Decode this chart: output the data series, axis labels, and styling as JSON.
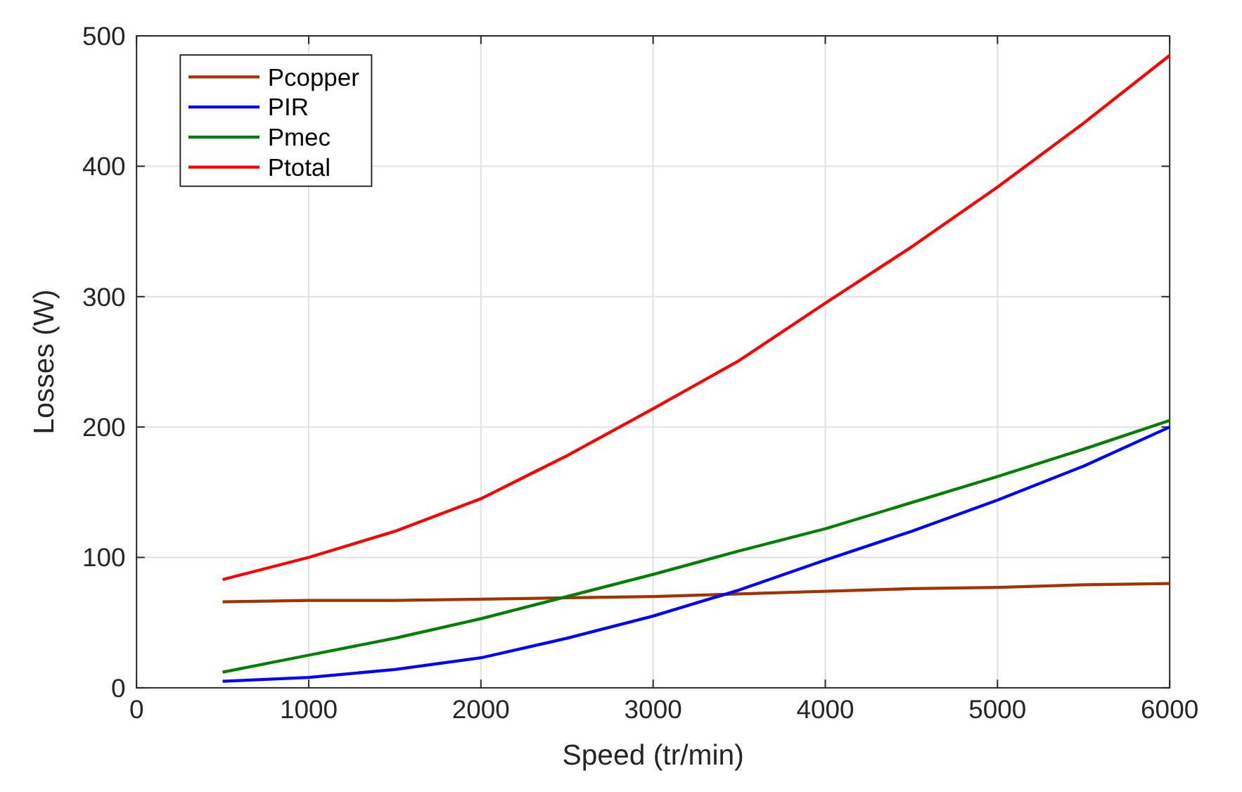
{
  "chart_data": {
    "type": "line",
    "xlabel": "Speed (tr/min)",
    "ylabel": "Losses (W)",
    "x": [
      500,
      1000,
      1500,
      2000,
      2500,
      3000,
      3500,
      4000,
      4500,
      5000,
      5500,
      6000
    ],
    "xlim": [
      0,
      6000
    ],
    "xticks": [
      0,
      1000,
      2000,
      3000,
      4000,
      5000,
      6000
    ],
    "ylim": [
      0,
      500
    ],
    "yticks": [
      0,
      100,
      200,
      300,
      400,
      500
    ],
    "grid": true,
    "legend": "top left",
    "series": [
      {
        "name": "Pcopper",
        "color": "#a33300",
        "values": [
          66,
          67,
          67,
          68,
          69,
          70,
          72,
          74,
          76,
          77,
          79,
          80
        ]
      },
      {
        "name": "PIR",
        "color": "#0000ff",
        "values": [
          5,
          8,
          14,
          23,
          38,
          55,
          75,
          98,
          120,
          144,
          170,
          200
        ]
      },
      {
        "name": "Pmec",
        "color": "#008000",
        "values": [
          12,
          25,
          38,
          53,
          70,
          87,
          105,
          122,
          142,
          162,
          183,
          205
        ]
      },
      {
        "name": "Ptotal",
        "color": "#ff0000",
        "values": [
          83,
          100,
          120,
          145,
          178,
          214,
          251,
          295,
          338,
          384,
          433,
          485
        ]
      }
    ]
  }
}
